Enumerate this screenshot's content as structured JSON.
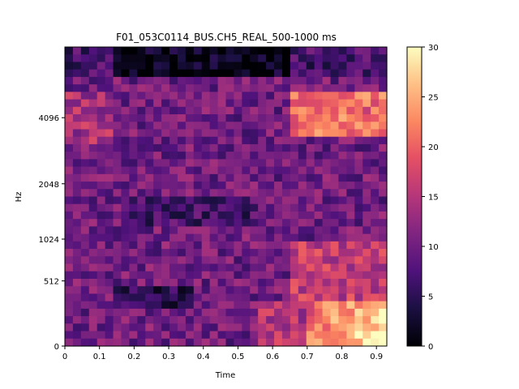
{
  "chart_data": {
    "type": "heatmap",
    "title": "F01_053C0114_BUS.CH5_REAL_500-1000 ms",
    "xlabel": "Time",
    "ylabel": "Hz",
    "x_range": [
      0,
      0.93
    ],
    "x_ticks": [
      "0",
      "0.1",
      "0.2",
      "0.3",
      "0.4",
      "0.5",
      "0.6",
      "0.7",
      "0.8",
      "0.9"
    ],
    "y_ticks": [
      "0",
      "512",
      "1024",
      "2048",
      "4096"
    ],
    "y_scale": "mel",
    "colorbar": {
      "ticks": [
        "0",
        "5",
        "10",
        "15",
        "20",
        "25",
        "30"
      ],
      "range": [
        0,
        30
      ],
      "colormap": "magma"
    },
    "grid_shape": [
      40,
      40
    ],
    "value_range_note": "values in dB-like units 0-30",
    "approx_regions": [
      {
        "label": "bright low-frequency energy",
        "time": [
          0.77,
          0.93
        ],
        "freq": [
          0,
          300
        ],
        "value": 29
      },
      {
        "label": "warm high band",
        "time": [
          0.7,
          0.93
        ],
        "freq": [
          3500,
          6000
        ],
        "value": 22
      },
      {
        "label": "dark top band",
        "time": [
          0.15,
          0.6
        ],
        "freq": [
          7000,
          8000
        ],
        "value": 3
      },
      {
        "label": "dark low band",
        "time": [
          0.1,
          0.35
        ],
        "freq": [
          150,
          400
        ],
        "value": 4
      }
    ]
  }
}
